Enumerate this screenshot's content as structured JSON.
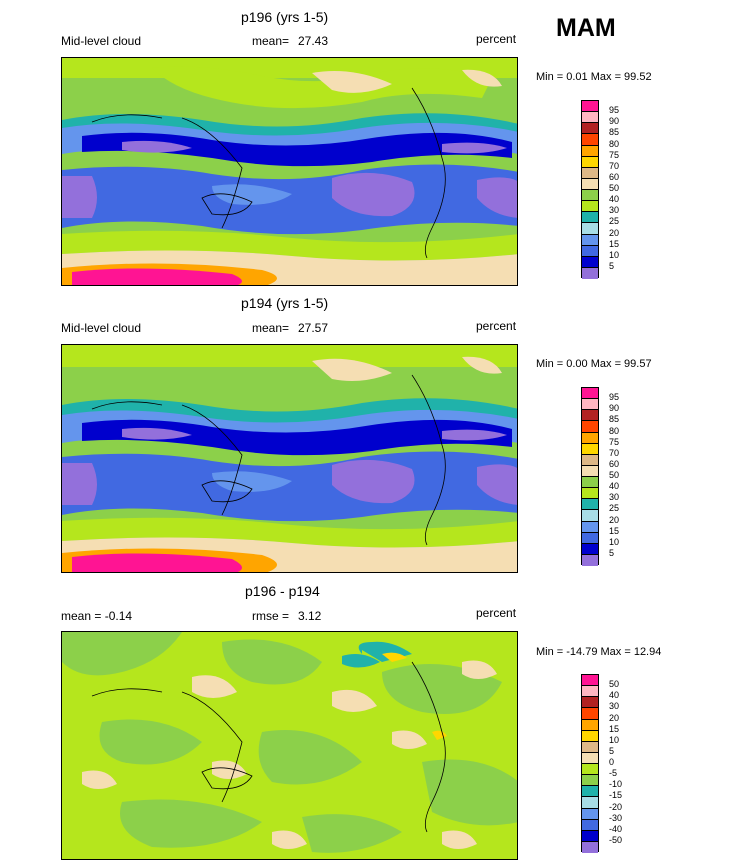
{
  "season": "MAM",
  "panels": [
    {
      "title": "p196 (yrs 1-5)",
      "left_label": "Mid-level cloud",
      "stat_label": "mean=",
      "stat_value": "27.43",
      "units": "percent",
      "range_text": "Min =  0.01 Max =  99.52",
      "levels": [
        "95",
        "90",
        "85",
        "80",
        "75",
        "70",
        "60",
        "50",
        "40",
        "30",
        "25",
        "20",
        "15",
        "10",
        "5"
      ]
    },
    {
      "title": "p194 (yrs 1-5)",
      "left_label": "Mid-level cloud",
      "stat_label": "mean=",
      "stat_value": "27.57",
      "units": "percent",
      "range_text": "Min =  0.00 Max =  99.57",
      "levels": [
        "95",
        "90",
        "85",
        "80",
        "75",
        "70",
        "60",
        "50",
        "40",
        "30",
        "25",
        "20",
        "15",
        "10",
        "5"
      ]
    },
    {
      "title": "p196 - p194",
      "left_label": "mean =  -0.14",
      "stat_label": "rmse =",
      "stat_value": "3.12",
      "units": "percent",
      "range_text": "Min = -14.79 Max =  12.94",
      "levels": [
        "50",
        "40",
        "30",
        "20",
        "15",
        "10",
        "5",
        "0",
        "-5",
        "-10",
        "-15",
        "-20",
        "-30",
        "-40",
        "-50"
      ]
    }
  ],
  "colors": {
    "cloud_scale": [
      "#ff1493",
      "#ffb6c1",
      "#b22222",
      "#ff4500",
      "#ffa500",
      "#ffd700",
      "#deb887",
      "#f5deb3",
      "#8cd04a",
      "#b5e61d",
      "#20b2aa",
      "#a8dde6",
      "#6495ed",
      "#4169e1",
      "#0000cd",
      "#9370db"
    ],
    "diff_scale": [
      "#ff1493",
      "#ffb6c1",
      "#b22222",
      "#ff4500",
      "#ffa500",
      "#ffd700",
      "#deb887",
      "#f5deb3",
      "#b5e61d",
      "#8cd04a",
      "#20b2aa",
      "#a8dde6",
      "#6495ed",
      "#4169e1",
      "#0000cd",
      "#9370db"
    ]
  }
}
